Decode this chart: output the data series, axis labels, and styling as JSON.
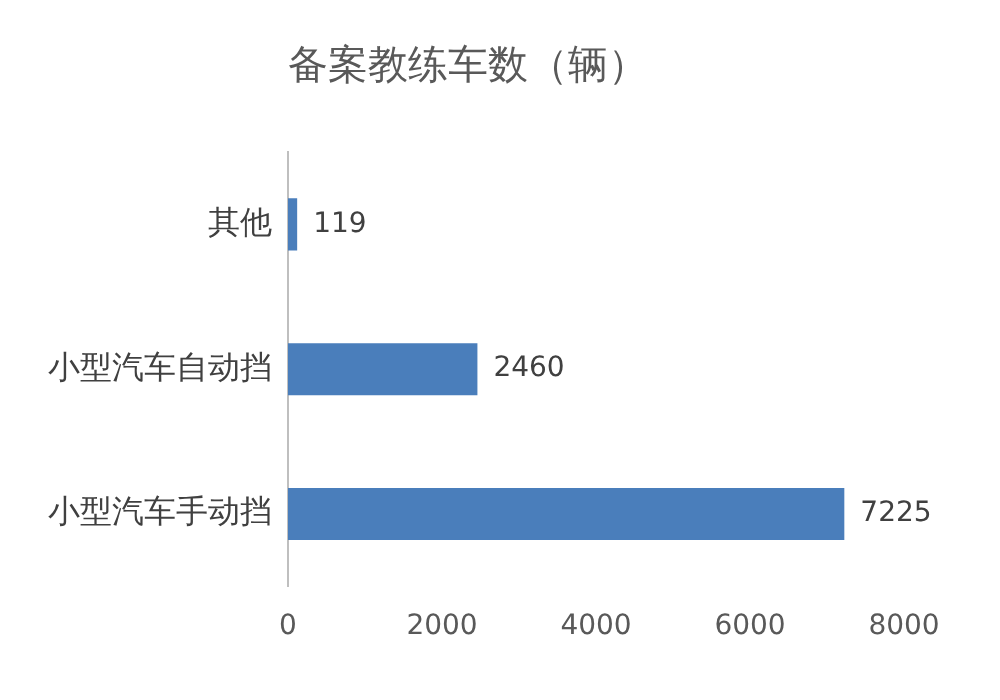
{
  "chart_data": {
    "type": "bar",
    "orientation": "horizontal",
    "title": "备案教练车数（辆）",
    "categories": [
      "其他",
      "小型汽车自动挡",
      "小型汽车手动挡"
    ],
    "values": [
      119,
      2460,
      7225
    ],
    "color": "#4a7ebb",
    "xlim": [
      0,
      8000
    ],
    "xticks": [
      0,
      2000,
      4000,
      6000,
      8000
    ],
    "grid": false,
    "data_labels": true,
    "legend": false
  }
}
